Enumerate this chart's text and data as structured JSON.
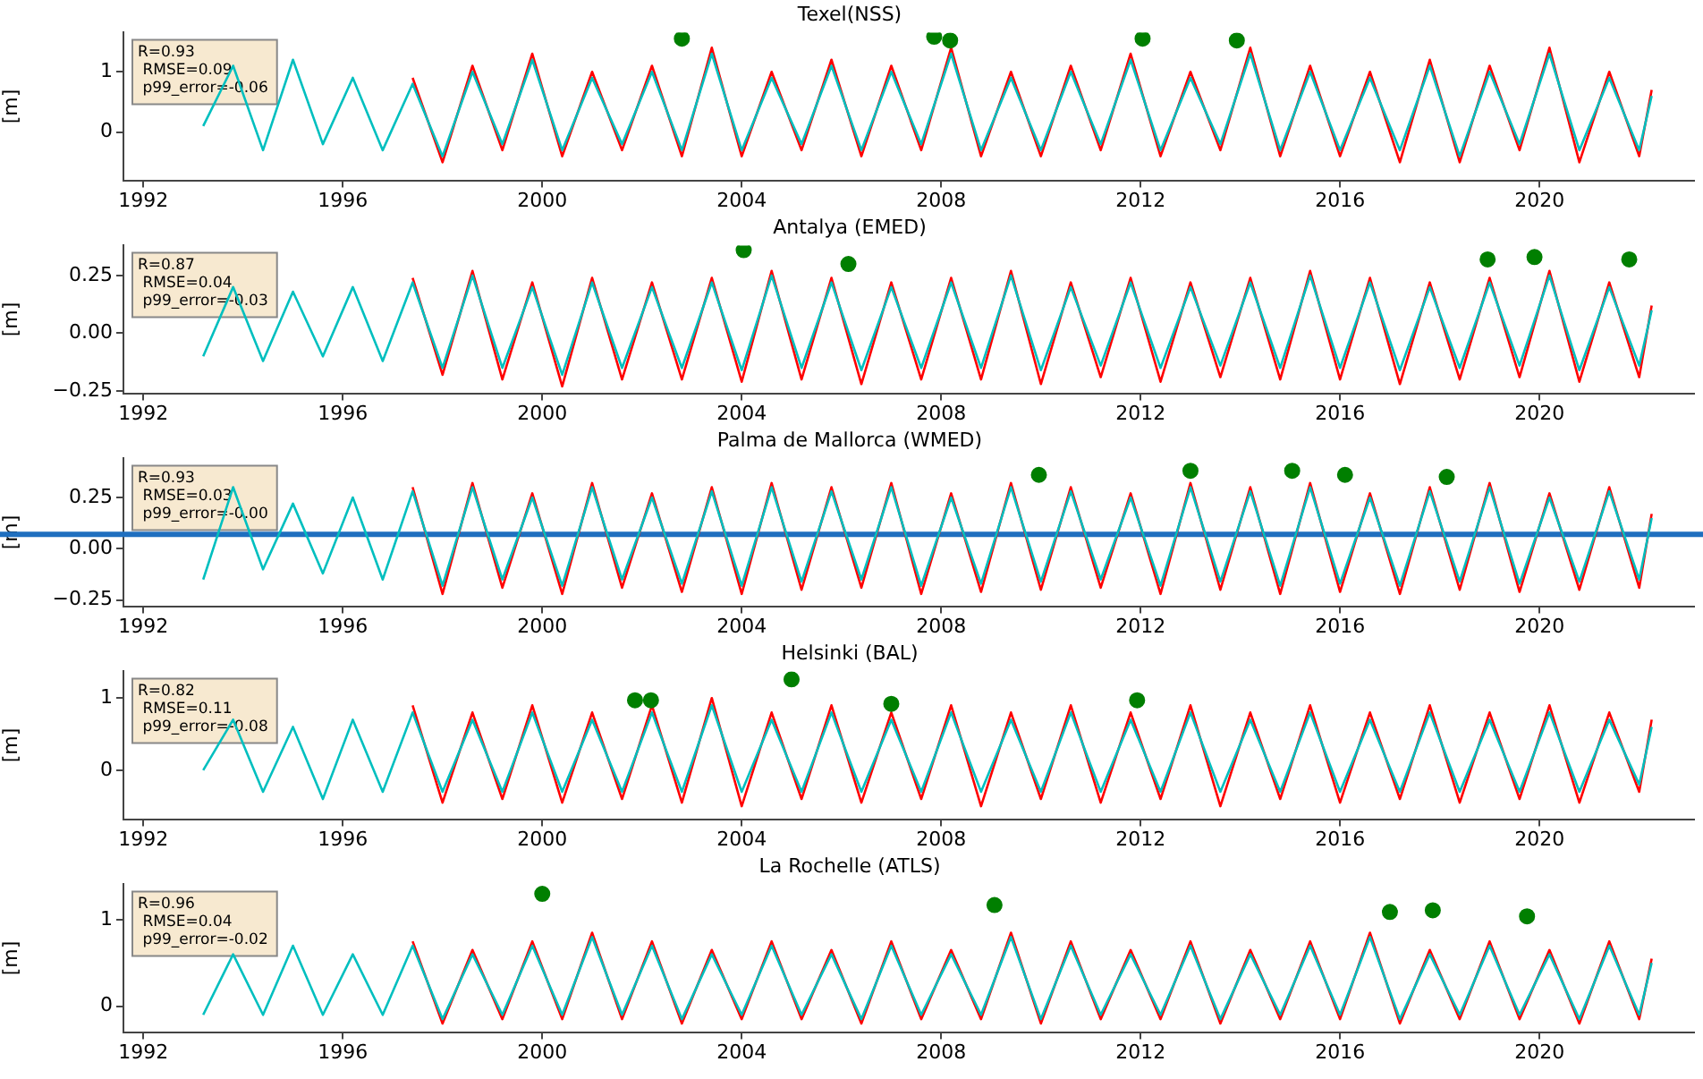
{
  "chart_data": [
    {
      "type": "line",
      "title": "Texel(NSS)",
      "ylabel": "[m]",
      "grid": false,
      "xlim": [
        1991.6,
        2023.1
      ],
      "xticks": [
        1992,
        1996,
        2000,
        2004,
        2008,
        2012,
        2016,
        2020
      ],
      "ylim": [
        -0.8,
        1.65
      ],
      "yticks": [
        {
          "value": 0,
          "label": "0"
        },
        {
          "value": 1,
          "label": "1"
        }
      ],
      "annotations": [
        "R=0.93",
        " RMSE=0.09",
        " p99_error=-0.06"
      ],
      "x": [
        1993.2,
        1993.8,
        1994.4,
        1995.0,
        1995.6,
        1996.2,
        1996.8,
        1997.4,
        1998.0,
        1998.6,
        1999.2,
        1999.8,
        2000.4,
        2001.0,
        2001.6,
        2002.2,
        2002.8,
        2003.4,
        2004.0,
        2004.6,
        2005.2,
        2005.8,
        2006.4,
        2007.0,
        2007.6,
        2008.2,
        2008.8,
        2009.4,
        2010.0,
        2010.6,
        2011.2,
        2011.8,
        2012.4,
        2013.0,
        2013.6,
        2014.2,
        2014.8,
        2015.4,
        2016.0,
        2016.6,
        2017.2,
        2017.8,
        2018.4,
        2019.0,
        2019.6,
        2020.2,
        2020.8,
        2021.4,
        2022.0,
        2022.25
      ],
      "series": [
        {
          "type": "line",
          "color": "#ff0000",
          "values": [
            null,
            null,
            null,
            null,
            null,
            null,
            null,
            0.9,
            -0.5,
            1.1,
            -0.3,
            1.3,
            -0.4,
            1.0,
            -0.3,
            1.1,
            -0.4,
            1.4,
            -0.4,
            1.0,
            -0.3,
            1.2,
            -0.4,
            1.1,
            -0.3,
            1.4,
            -0.4,
            1.0,
            -0.4,
            1.1,
            -0.3,
            1.3,
            -0.4,
            1.0,
            -0.3,
            1.4,
            -0.4,
            1.1,
            -0.4,
            1.0,
            -0.5,
            1.2,
            -0.5,
            1.1,
            -0.3,
            1.4,
            -0.5,
            1.0,
            -0.4,
            0.7
          ]
        },
        {
          "type": "line",
          "color": "#00bfbf",
          "values": [
            0.1,
            1.1,
            -0.3,
            1.2,
            -0.2,
            0.9,
            -0.3,
            0.8,
            -0.4,
            1.0,
            -0.2,
            1.2,
            -0.3,
            0.9,
            -0.2,
            1.0,
            -0.3,
            1.3,
            -0.3,
            0.9,
            -0.2,
            1.1,
            -0.3,
            1.0,
            -0.2,
            1.3,
            -0.3,
            0.9,
            -0.3,
            1.0,
            -0.2,
            1.2,
            -0.3,
            0.9,
            -0.2,
            1.3,
            -0.3,
            1.0,
            -0.3,
            0.9,
            -0.3,
            1.1,
            -0.4,
            1.0,
            -0.2,
            1.3,
            -0.3,
            0.9,
            -0.3,
            0.6
          ]
        },
        {
          "type": "scatter",
          "color": "#007f00",
          "x": [
            2002.8,
            2007.86,
            2008.18,
            2012.04,
            2013.93
          ],
          "values": [
            1.55,
            1.58,
            1.52,
            1.55,
            1.52
          ]
        }
      ]
    },
    {
      "type": "line",
      "title": "Antalya (EMED)",
      "ylabel": "[m]",
      "grid": false,
      "xlim": [
        1991.6,
        2023.1
      ],
      "xticks": [
        1992,
        1996,
        2000,
        2004,
        2008,
        2012,
        2016,
        2020
      ],
      "ylim": [
        -0.26,
        0.38
      ],
      "yticks": [
        {
          "value": -0.25,
          "label": "−0.25"
        },
        {
          "value": 0,
          "label": "0.00"
        },
        {
          "value": 0.25,
          "label": "0.25"
        }
      ],
      "annotations": [
        "R=0.87",
        " RMSE=0.04",
        " p99_error=-0.03"
      ],
      "x": [
        1993.2,
        1993.8,
        1994.4,
        1995.0,
        1995.6,
        1996.2,
        1996.8,
        1997.4,
        1998.0,
        1998.6,
        1999.2,
        1999.8,
        2000.4,
        2001.0,
        2001.6,
        2002.2,
        2002.8,
        2003.4,
        2004.0,
        2004.6,
        2005.2,
        2005.8,
        2006.4,
        2007.0,
        2007.6,
        2008.2,
        2008.8,
        2009.4,
        2010.0,
        2010.6,
        2011.2,
        2011.8,
        2012.4,
        2013.0,
        2013.6,
        2014.2,
        2014.8,
        2015.4,
        2016.0,
        2016.6,
        2017.2,
        2017.8,
        2018.4,
        2019.0,
        2019.6,
        2020.2,
        2020.8,
        2021.4,
        2022.0,
        2022.25
      ],
      "series": [
        {
          "type": "line",
          "color": "#ff0000",
          "values": [
            null,
            null,
            null,
            null,
            null,
            null,
            null,
            0.24,
            -0.18,
            0.27,
            -0.2,
            0.22,
            -0.23,
            0.24,
            -0.2,
            0.22,
            -0.2,
            0.24,
            -0.21,
            0.27,
            -0.2,
            0.24,
            -0.22,
            0.22,
            -0.2,
            0.24,
            -0.2,
            0.27,
            -0.22,
            0.22,
            -0.19,
            0.24,
            -0.21,
            0.22,
            -0.19,
            0.24,
            -0.2,
            0.27,
            -0.2,
            0.24,
            -0.22,
            0.22,
            -0.2,
            0.24,
            -0.19,
            0.27,
            -0.21,
            0.22,
            -0.19,
            0.12
          ]
        },
        {
          "type": "line",
          "color": "#00bfbf",
          "values": [
            -0.1,
            0.2,
            -0.12,
            0.18,
            -0.1,
            0.2,
            -0.12,
            0.22,
            -0.15,
            0.25,
            -0.15,
            0.2,
            -0.18,
            0.22,
            -0.15,
            0.2,
            -0.15,
            0.22,
            -0.16,
            0.25,
            -0.15,
            0.22,
            -0.16,
            0.2,
            -0.15,
            0.22,
            -0.15,
            0.25,
            -0.16,
            0.2,
            -0.14,
            0.22,
            -0.15,
            0.2,
            -0.14,
            0.22,
            -0.15,
            0.25,
            -0.15,
            0.22,
            -0.16,
            0.2,
            -0.15,
            0.22,
            -0.14,
            0.25,
            -0.16,
            0.2,
            -0.14,
            0.1
          ]
        },
        {
          "type": "scatter",
          "color": "#007f00",
          "x": [
            2004.04,
            2006.14,
            2018.96,
            2019.9,
            2021.8
          ],
          "values": [
            0.36,
            0.3,
            0.32,
            0.33,
            0.32
          ]
        }
      ]
    },
    {
      "type": "line",
      "title": "Palma de Mallorca (WMED)",
      "ylabel": "[m]",
      "grid": false,
      "xlim": [
        1991.6,
        2023.1
      ],
      "xticks": [
        1992,
        1996,
        2000,
        2004,
        2008,
        2012,
        2016,
        2020
      ],
      "ylim": [
        -0.28,
        0.44
      ],
      "yticks": [
        {
          "value": -0.25,
          "label": "−0.25"
        },
        {
          "value": 0,
          "label": "0.00"
        },
        {
          "value": 0.25,
          "label": "0.25"
        }
      ],
      "annotations": [
        "R=0.93",
        " RMSE=0.03",
        " p99_error=-0.00"
      ],
      "ref_lines": [
        {
          "axis": "y",
          "value": 0.07,
          "color": "#1f6fbf"
        }
      ],
      "x": [
        1993.2,
        1993.8,
        1994.4,
        1995.0,
        1995.6,
        1996.2,
        1996.8,
        1997.4,
        1998.0,
        1998.6,
        1999.2,
        1999.8,
        2000.4,
        2001.0,
        2001.6,
        2002.2,
        2002.8,
        2003.4,
        2004.0,
        2004.6,
        2005.2,
        2005.8,
        2006.4,
        2007.0,
        2007.6,
        2008.2,
        2008.8,
        2009.4,
        2010.0,
        2010.6,
        2011.2,
        2011.8,
        2012.4,
        2013.0,
        2013.6,
        2014.2,
        2014.8,
        2015.4,
        2016.0,
        2016.6,
        2017.2,
        2017.8,
        2018.4,
        2019.0,
        2019.6,
        2020.2,
        2020.8,
        2021.4,
        2022.0,
        2022.25
      ],
      "series": [
        {
          "type": "line",
          "color": "#ff0000",
          "values": [
            null,
            null,
            null,
            null,
            null,
            null,
            null,
            0.3,
            -0.22,
            0.32,
            -0.19,
            0.27,
            -0.22,
            0.32,
            -0.19,
            0.27,
            -0.21,
            0.3,
            -0.22,
            0.32,
            -0.2,
            0.3,
            -0.19,
            0.32,
            -0.22,
            0.27,
            -0.21,
            0.32,
            -0.2,
            0.3,
            -0.19,
            0.27,
            -0.22,
            0.32,
            -0.2,
            0.3,
            -0.22,
            0.32,
            -0.21,
            0.27,
            -0.22,
            0.3,
            -0.2,
            0.32,
            -0.21,
            0.27,
            -0.2,
            0.3,
            -0.19,
            0.17
          ]
        },
        {
          "type": "line",
          "color": "#00bfbf",
          "values": [
            -0.15,
            0.3,
            -0.1,
            0.22,
            -0.12,
            0.25,
            -0.15,
            0.28,
            -0.18,
            0.3,
            -0.15,
            0.25,
            -0.18,
            0.3,
            -0.15,
            0.25,
            -0.17,
            0.28,
            -0.18,
            0.3,
            -0.16,
            0.28,
            -0.15,
            0.3,
            -0.18,
            0.25,
            -0.17,
            0.3,
            -0.16,
            0.28,
            -0.15,
            0.25,
            -0.18,
            0.3,
            -0.16,
            0.28,
            -0.18,
            0.3,
            -0.17,
            0.25,
            -0.18,
            0.28,
            -0.16,
            0.3,
            -0.17,
            0.25,
            -0.16,
            0.28,
            -0.15,
            0.15
          ]
        },
        {
          "type": "scatter",
          "color": "#007f00",
          "x": [
            2009.96,
            2013.0,
            2015.04,
            2016.1,
            2018.14
          ],
          "values": [
            0.36,
            0.38,
            0.38,
            0.36,
            0.35
          ]
        }
      ]
    },
    {
      "type": "line",
      "title": "Helsinki (BAL)",
      "ylabel": "[m]",
      "grid": false,
      "xlim": [
        1991.6,
        2023.1
      ],
      "xticks": [
        1992,
        1996,
        2000,
        2004,
        2008,
        2012,
        2016,
        2020
      ],
      "ylim": [
        -0.68,
        1.37
      ],
      "yticks": [
        {
          "value": 0,
          "label": "0"
        },
        {
          "value": 1,
          "label": "1"
        }
      ],
      "annotations": [
        "R=0.82",
        " RMSE=0.11",
        " p99_error=-0.08"
      ],
      "x": [
        1993.2,
        1993.8,
        1994.4,
        1995.0,
        1995.6,
        1996.2,
        1996.8,
        1997.4,
        1998.0,
        1998.6,
        1999.2,
        1999.8,
        2000.4,
        2001.0,
        2001.6,
        2002.2,
        2002.8,
        2003.4,
        2004.0,
        2004.6,
        2005.2,
        2005.8,
        2006.4,
        2007.0,
        2007.6,
        2008.2,
        2008.8,
        2009.4,
        2010.0,
        2010.6,
        2011.2,
        2011.8,
        2012.4,
        2013.0,
        2013.6,
        2014.2,
        2014.8,
        2015.4,
        2016.0,
        2016.6,
        2017.2,
        2017.8,
        2018.4,
        2019.0,
        2019.6,
        2020.2,
        2020.8,
        2021.4,
        2022.0,
        2022.25
      ],
      "series": [
        {
          "type": "line",
          "color": "#ff0000",
          "values": [
            null,
            null,
            null,
            null,
            null,
            null,
            null,
            0.9,
            -0.45,
            0.8,
            -0.4,
            0.9,
            -0.45,
            0.8,
            -0.4,
            0.9,
            -0.45,
            1.0,
            -0.5,
            0.8,
            -0.4,
            0.9,
            -0.45,
            0.8,
            -0.4,
            0.9,
            -0.5,
            0.8,
            -0.4,
            0.9,
            -0.45,
            0.8,
            -0.4,
            0.9,
            -0.5,
            0.8,
            -0.4,
            0.9,
            -0.45,
            0.8,
            -0.4,
            0.9,
            -0.45,
            0.8,
            -0.4,
            0.9,
            -0.45,
            0.8,
            -0.3,
            0.7
          ]
        },
        {
          "type": "line",
          "color": "#00bfbf",
          "values": [
            0.0,
            0.7,
            -0.3,
            0.6,
            -0.4,
            0.7,
            -0.3,
            0.8,
            -0.3,
            0.7,
            -0.3,
            0.8,
            -0.3,
            0.7,
            -0.3,
            0.8,
            -0.3,
            0.9,
            -0.3,
            0.7,
            -0.3,
            0.8,
            -0.3,
            0.7,
            -0.3,
            0.8,
            -0.3,
            0.7,
            -0.3,
            0.8,
            -0.3,
            0.7,
            -0.3,
            0.8,
            -0.3,
            0.7,
            -0.3,
            0.8,
            -0.3,
            0.7,
            -0.3,
            0.8,
            -0.3,
            0.7,
            -0.3,
            0.8,
            -0.3,
            0.7,
            -0.2,
            0.6
          ]
        },
        {
          "type": "scatter",
          "color": "#007f00",
          "x": [
            2001.86,
            2002.18,
            2005.0,
            2007.0,
            2011.93
          ],
          "values": [
            0.97,
            0.97,
            1.26,
            0.92,
            0.97
          ]
        }
      ]
    },
    {
      "type": "line",
      "title": "La Rochelle (ATLS)",
      "ylabel": "[m]",
      "grid": false,
      "xlim": [
        1991.6,
        2023.1
      ],
      "xticks": [
        1992,
        1996,
        2000,
        2004,
        2008,
        2012,
        2016,
        2020
      ],
      "ylim": [
        -0.3,
        1.41
      ],
      "yticks": [
        {
          "value": 0,
          "label": "0"
        },
        {
          "value": 1,
          "label": "1"
        }
      ],
      "annotations": [
        "R=0.96",
        " RMSE=0.04",
        " p99_error=-0.02"
      ],
      "x": [
        1993.2,
        1993.8,
        1994.4,
        1995.0,
        1995.6,
        1996.2,
        1996.8,
        1997.4,
        1998.0,
        1998.6,
        1999.2,
        1999.8,
        2000.4,
        2001.0,
        2001.6,
        2002.2,
        2002.8,
        2003.4,
        2004.0,
        2004.6,
        2005.2,
        2005.8,
        2006.4,
        2007.0,
        2007.6,
        2008.2,
        2008.8,
        2009.4,
        2010.0,
        2010.6,
        2011.2,
        2011.8,
        2012.4,
        2013.0,
        2013.6,
        2014.2,
        2014.8,
        2015.4,
        2016.0,
        2016.6,
        2017.2,
        2017.8,
        2018.4,
        2019.0,
        2019.6,
        2020.2,
        2020.8,
        2021.4,
        2022.0,
        2022.25
      ],
      "series": [
        {
          "type": "line",
          "color": "#ff0000",
          "values": [
            null,
            null,
            null,
            null,
            null,
            null,
            null,
            0.75,
            -0.2,
            0.65,
            -0.15,
            0.75,
            -0.15,
            0.85,
            -0.15,
            0.75,
            -0.2,
            0.65,
            -0.15,
            0.75,
            -0.15,
            0.65,
            -0.2,
            0.75,
            -0.15,
            0.65,
            -0.15,
            0.85,
            -0.2,
            0.75,
            -0.15,
            0.65,
            -0.15,
            0.75,
            -0.2,
            0.65,
            -0.15,
            0.75,
            -0.15,
            0.85,
            -0.2,
            0.65,
            -0.15,
            0.75,
            -0.15,
            0.65,
            -0.2,
            0.75,
            -0.15,
            0.55
          ]
        },
        {
          "type": "line",
          "color": "#00bfbf",
          "values": [
            -0.1,
            0.6,
            -0.1,
            0.7,
            -0.1,
            0.6,
            -0.1,
            0.7,
            -0.15,
            0.6,
            -0.1,
            0.7,
            -0.1,
            0.8,
            -0.1,
            0.7,
            -0.15,
            0.6,
            -0.1,
            0.7,
            -0.1,
            0.6,
            -0.15,
            0.7,
            -0.1,
            0.6,
            -0.1,
            0.8,
            -0.15,
            0.7,
            -0.1,
            0.6,
            -0.1,
            0.7,
            -0.15,
            0.6,
            -0.1,
            0.7,
            -0.1,
            0.8,
            -0.15,
            0.6,
            -0.1,
            0.7,
            -0.1,
            0.6,
            -0.15,
            0.7,
            -0.1,
            0.5
          ]
        },
        {
          "type": "scatter",
          "color": "#007f00",
          "x": [
            2000.0,
            2009.07,
            2017.0,
            2017.86,
            2019.75
          ],
          "values": [
            1.3,
            1.17,
            1.09,
            1.11,
            1.04
          ]
        }
      ]
    }
  ]
}
